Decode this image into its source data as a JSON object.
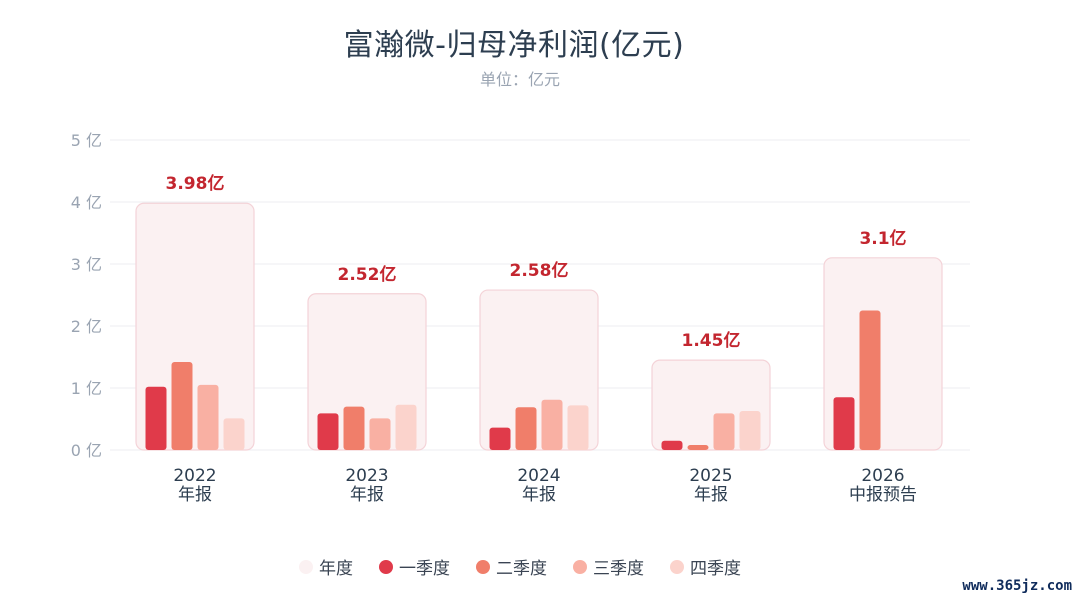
{
  "title": "富瀚微-归母净利润(亿元)",
  "subtitle": "单位：亿元",
  "watermark": "www.365jz.com",
  "colors": {
    "annual_fill": "#fbf1f2",
    "annual_stroke": "#f4d3d8",
    "annual_label": "#c3262f",
    "q1": "#e03a4a",
    "q2": "#f07e6a",
    "q3": "#f9b0a3",
    "q4": "#fbd3cc",
    "legend_annual": "#fbf1f2",
    "axis_text": "#9aa4b2",
    "category_text": "#2d3e50",
    "grid": "#eceef2"
  },
  "legend": [
    {
      "key": "annual",
      "label": "年度"
    },
    {
      "key": "q1",
      "label": "一季度"
    },
    {
      "key": "q2",
      "label": "二季度"
    },
    {
      "key": "q3",
      "label": "三季度"
    },
    {
      "key": "q4",
      "label": "四季度"
    }
  ],
  "chart_data": {
    "type": "bar",
    "title": "富瀚微-归母净利润(亿元)",
    "subtitle": "单位：亿元",
    "ylim": [
      0,
      5
    ],
    "yticks": [
      {
        "value": 0,
        "label": "0 亿"
      },
      {
        "value": 1,
        "label": "1 亿"
      },
      {
        "value": 2,
        "label": "2 亿"
      },
      {
        "value": 3,
        "label": "3 亿"
      },
      {
        "value": 4,
        "label": "4 亿"
      },
      {
        "value": 5,
        "label": "5 亿"
      }
    ],
    "grid": true,
    "legend_position": "bottom",
    "categories": [
      {
        "year": "2022",
        "period": "年报"
      },
      {
        "year": "2023",
        "period": "年报"
      },
      {
        "year": "2024",
        "period": "年报"
      },
      {
        "year": "2025",
        "period": "年报"
      },
      {
        "year": "2026",
        "period": "中报预告"
      }
    ],
    "annual": [
      {
        "value": 3.98,
        "label": "3.98亿"
      },
      {
        "value": 2.52,
        "label": "2.52亿"
      },
      {
        "value": 2.58,
        "label": "2.58亿"
      },
      {
        "value": 1.45,
        "label": "1.45亿"
      },
      {
        "value": 3.1,
        "label": "3.1亿"
      }
    ],
    "series": [
      {
        "key": "q1",
        "name": "一季度",
        "values": [
          1.02,
          0.59,
          0.36,
          0.15,
          0.85
        ]
      },
      {
        "key": "q2",
        "name": "二季度",
        "values": [
          1.42,
          0.7,
          0.69,
          0.08,
          2.25
        ]
      },
      {
        "key": "q3",
        "name": "三季度",
        "values": [
          1.05,
          0.51,
          0.81,
          0.59,
          null
        ]
      },
      {
        "key": "q4",
        "name": "四季度",
        "values": [
          0.51,
          0.73,
          0.72,
          0.63,
          null
        ]
      }
    ]
  }
}
